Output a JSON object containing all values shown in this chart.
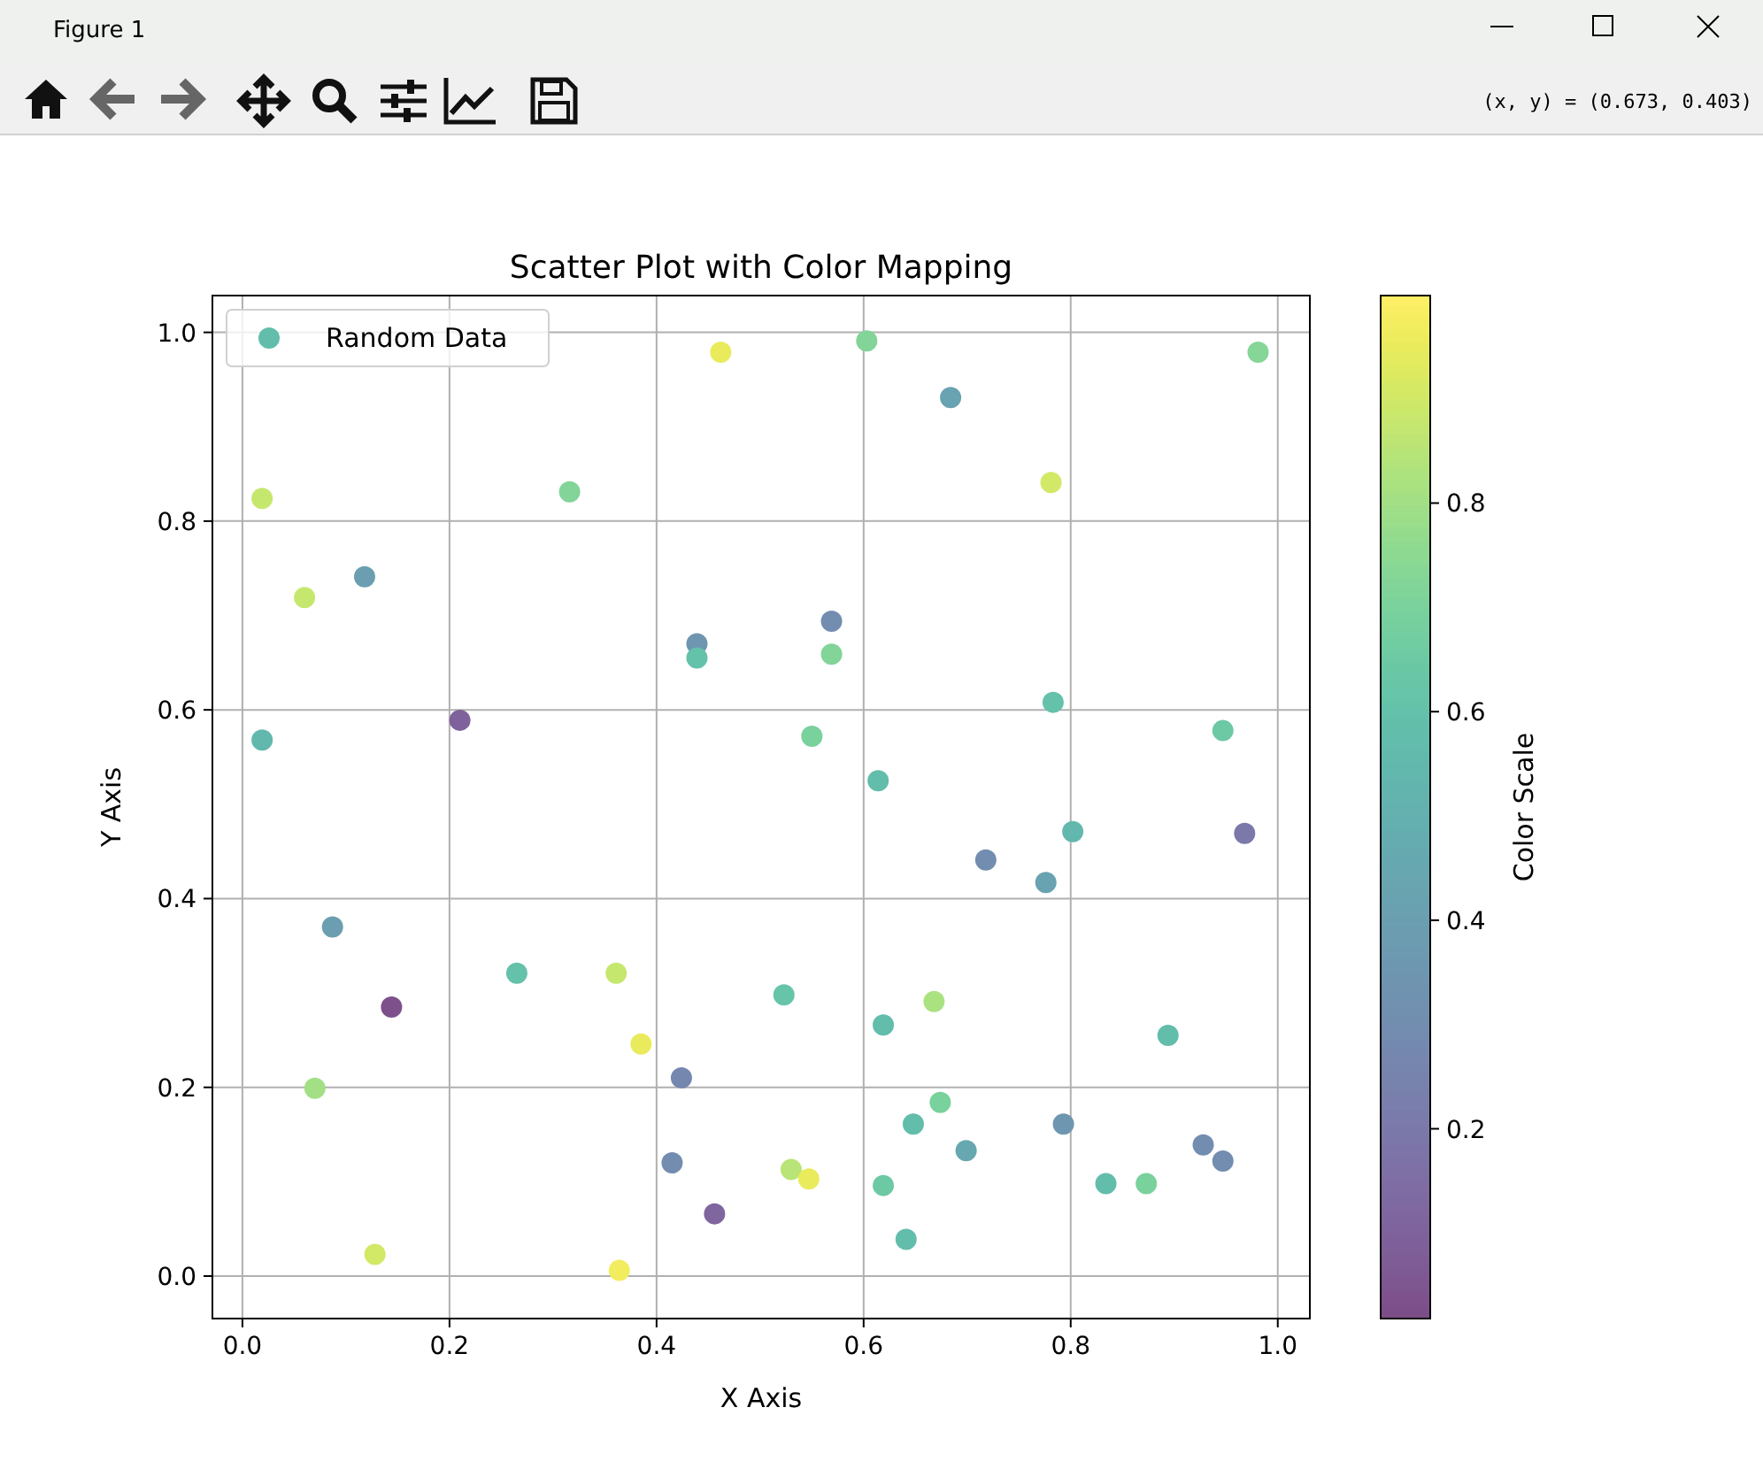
{
  "chart_data": {
    "type": "scatter",
    "title": "Scatter Plot with Color Mapping",
    "xlabel": "X Axis",
    "ylabel": "Y Axis",
    "clabel": "Color Scale",
    "annotations": [
      "Figure 1",
      "(x, y) = (0.673, 0.403)"
    ],
    "xlim": [
      -0.029,
      1.031
    ],
    "ylim": [
      -0.045,
      1.039
    ],
    "xticks": [
      {
        "value": 0,
        "label": "0.0"
      },
      0.2,
      0.4,
      0.6,
      0.8,
      {
        "value": 1,
        "label": "1.0"
      }
    ],
    "yticks": [
      {
        "value": 0,
        "label": "0.0"
      },
      0.2,
      0.4,
      0.6,
      0.8,
      {
        "value": 1,
        "label": "1.0"
      }
    ],
    "clim": [
      0.018,
      0.999
    ],
    "cticks": [
      0.2,
      0.4,
      0.6,
      0.8
    ],
    "grid": true,
    "legend": "top left",
    "marker": "circle",
    "series": [
      {
        "name": "Random Data",
        "x": [
          0.019,
          0.06,
          0.118,
          0.019,
          0.21,
          0.316,
          0.462,
          0.439,
          0.439,
          0.603,
          0.684,
          0.781,
          0.569,
          0.569,
          0.55,
          0.614,
          0.981,
          0.783,
          0.947,
          0.802,
          0.718,
          0.776,
          0.968,
          0.087,
          0.144,
          0.265,
          0.361,
          0.385,
          0.424,
          0.07,
          0.128,
          0.364,
          0.415,
          0.456,
          0.523,
          0.668,
          0.619,
          0.674,
          0.648,
          0.53,
          0.547,
          0.619,
          0.641,
          0.699,
          0.793,
          0.834,
          0.873,
          0.894,
          0.928,
          0.947
        ],
        "values": [
          0.824,
          0.719,
          0.741,
          0.568,
          0.589,
          0.831,
          0.979,
          0.67,
          0.655,
          0.991,
          0.931,
          0.841,
          0.659,
          0.694,
          0.572,
          0.525,
          0.979,
          0.608,
          0.578,
          0.471,
          0.441,
          0.417,
          0.469,
          0.37,
          0.285,
          0.321,
          0.321,
          0.246,
          0.21,
          0.199,
          0.023,
          0.006,
          0.12,
          0.066,
          0.298,
          0.291,
          0.266,
          0.184,
          0.161,
          0.113,
          0.103,
          0.096,
          0.039,
          0.133,
          0.161,
          0.098,
          0.098,
          0.255,
          0.139,
          0.122
        ],
        "cvalues": [
          0.88,
          0.88,
          0.4,
          0.55,
          0.1,
          0.72,
          0.95,
          0.35,
          0.6,
          0.72,
          0.42,
          0.9,
          0.72,
          0.3,
          0.7,
          0.58,
          0.73,
          0.6,
          0.65,
          0.55,
          0.3,
          0.42,
          0.2,
          0.4,
          0.03,
          0.6,
          0.88,
          0.95,
          0.27,
          0.8,
          0.9,
          0.97,
          0.3,
          0.12,
          0.62,
          0.82,
          0.58,
          0.7,
          0.58,
          0.85,
          0.95,
          0.65,
          0.58,
          0.45,
          0.35,
          0.58,
          0.7,
          0.58,
          0.3,
          0.3
        ]
      }
    ]
  }
}
